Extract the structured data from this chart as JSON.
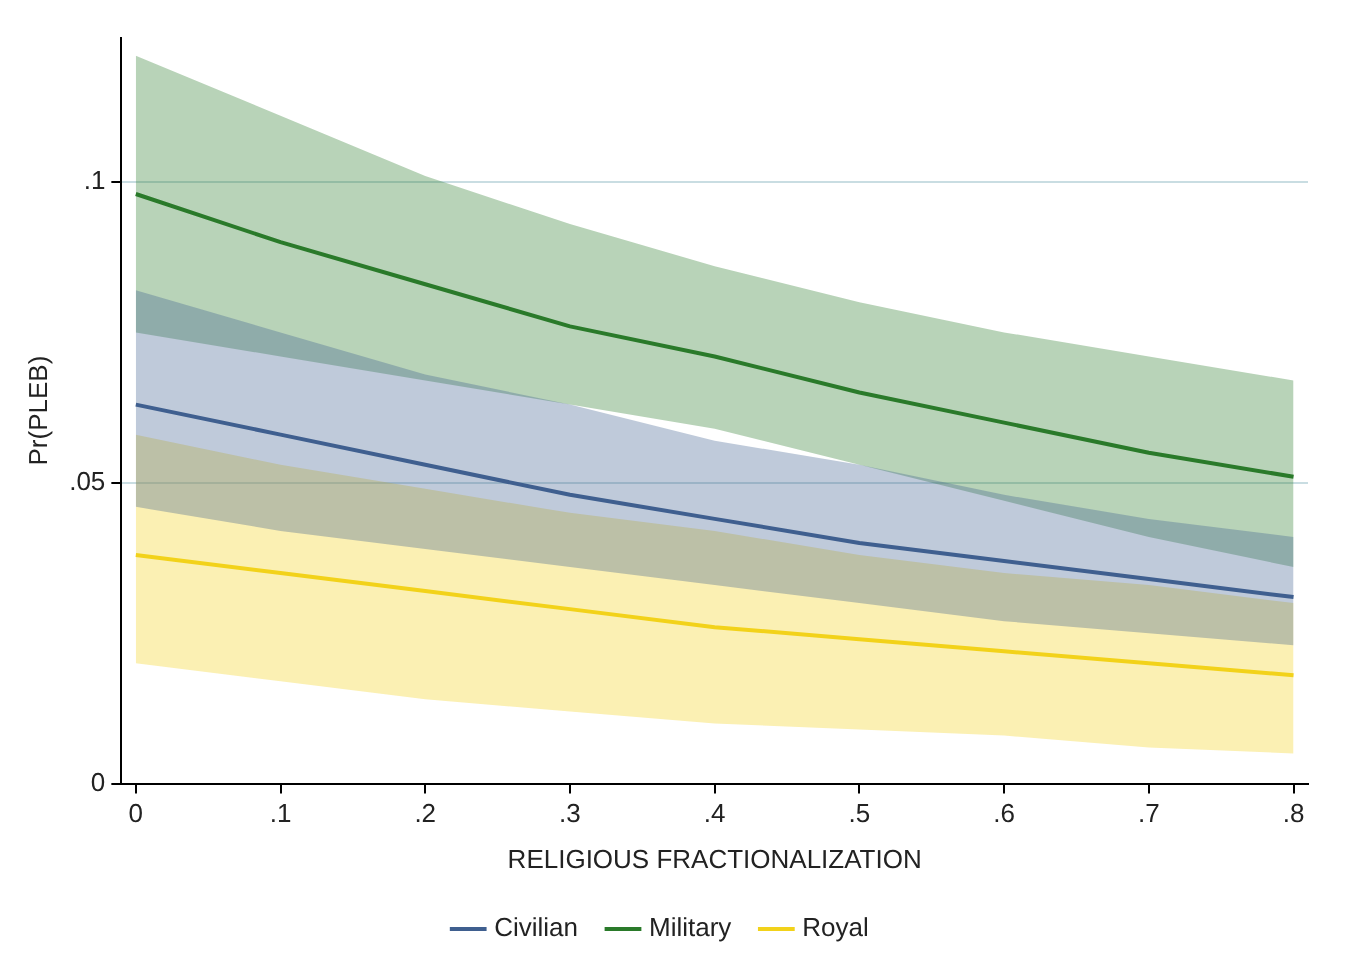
{
  "chart_data": {
    "type": "line",
    "xlabel": "RELIGIOUS FRACTIONALIZATION",
    "ylabel": "Pr(PLEB)",
    "x": [
      0,
      0.1,
      0.2,
      0.3,
      0.4,
      0.5,
      0.6,
      0.7,
      0.8
    ],
    "series": [
      {
        "name": "Civilian",
        "color": "#3f5f8f",
        "values": [
          0.063,
          0.058,
          0.053,
          0.048,
          0.044,
          0.04,
          0.037,
          0.034,
          0.031
        ],
        "lower": [
          0.046,
          0.042,
          0.039,
          0.036,
          0.033,
          0.03,
          0.027,
          0.025,
          0.023
        ],
        "upper": [
          0.082,
          0.075,
          0.068,
          0.063,
          0.057,
          0.053,
          0.048,
          0.044,
          0.041
        ]
      },
      {
        "name": "Military",
        "color": "#2a7a2a",
        "values": [
          0.098,
          0.09,
          0.083,
          0.076,
          0.071,
          0.065,
          0.06,
          0.055,
          0.051
        ],
        "lower": [
          0.075,
          0.071,
          0.067,
          0.063,
          0.059,
          0.053,
          0.047,
          0.041,
          0.036
        ],
        "upper": [
          0.121,
          0.111,
          0.101,
          0.093,
          0.086,
          0.08,
          0.075,
          0.071,
          0.067
        ]
      },
      {
        "name": "Royal",
        "color": "#f2d21a",
        "values": [
          0.038,
          0.035,
          0.032,
          0.029,
          0.026,
          0.024,
          0.022,
          0.02,
          0.018
        ],
        "lower": [
          0.02,
          0.017,
          0.014,
          0.012,
          0.01,
          0.009,
          0.008,
          0.006,
          0.005
        ],
        "upper": [
          0.058,
          0.053,
          0.049,
          0.045,
          0.042,
          0.038,
          0.035,
          0.033,
          0.03
        ]
      }
    ],
    "xlim": [
      -0.01,
      0.81
    ],
    "ylim": [
      0,
      0.124
    ],
    "xticks": [
      0,
      {
        "value": 0.1,
        "label": ".1"
      },
      {
        "value": 0.2,
        "label": ".2"
      },
      {
        "value": 0.3,
        "label": ".3"
      },
      {
        "value": 0.4,
        "label": ".4"
      },
      {
        "value": 0.5,
        "label": ".5"
      },
      {
        "value": 0.6,
        "label": ".6"
      },
      {
        "value": 0.7,
        "label": ".7"
      },
      {
        "value": 0.8,
        "label": ".8"
      }
    ],
    "yticks": [
      0,
      {
        "value": 0.05,
        "label": ".05"
      },
      {
        "value": 0.1,
        "label": ".1"
      }
    ],
    "grid": "y",
    "legend": "bottom",
    "marker": "none",
    "line_style": "solid"
  }
}
